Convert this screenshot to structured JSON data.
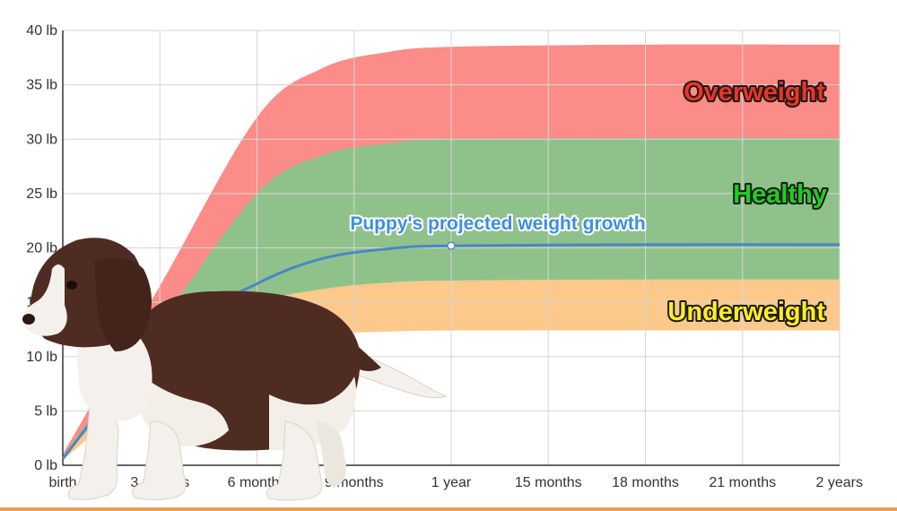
{
  "chart_data": {
    "type": "area",
    "x_ticks": [
      "birth",
      "3 months",
      "6 months",
      "9 months",
      "1 year",
      "15 months",
      "18 months",
      "21 months",
      "2 years"
    ],
    "x_range_months": [
      0,
      24
    ],
    "y_ticks": [
      "0 lb",
      "5 lb",
      "10 lb",
      "15 lb",
      "20 lb",
      "25 lb",
      "30 lb",
      "35 lb",
      "40 lb"
    ],
    "ylim": [
      0,
      40
    ],
    "unit": "lb",
    "grid": true,
    "bands": [
      {
        "name": "Overweight",
        "color": "#fb8c88",
        "label_color": "#ee3322",
        "points": [
          [
            0,
            1.0
          ],
          [
            3,
            16.5
          ],
          [
            6,
            32
          ],
          [
            8,
            36.5
          ],
          [
            10,
            38.0
          ],
          [
            12,
            38.5
          ],
          [
            18,
            38.7
          ],
          [
            24,
            38.7
          ]
        ]
      },
      {
        "name": "Healthy",
        "color": "#8fc28b",
        "label_color": "#22cc22",
        "points": [
          [
            0,
            0.8
          ],
          [
            3,
            13.0
          ],
          [
            6,
            25.0
          ],
          [
            8,
            28.5
          ],
          [
            10,
            29.6
          ],
          [
            12,
            30.0
          ],
          [
            18,
            30.1
          ],
          [
            24,
            30.1
          ]
        ]
      },
      {
        "name": "Underweight",
        "color": "#fcc98b",
        "label_color": "#ffee22",
        "points": [
          [
            0,
            0.7
          ],
          [
            3,
            10.0
          ],
          [
            6,
            14.8
          ],
          [
            8,
            16.2
          ],
          [
            10,
            16.8
          ],
          [
            12,
            17.0
          ],
          [
            18,
            17.1
          ],
          [
            24,
            17.1
          ]
        ]
      },
      {
        "name": "",
        "color": "#ffffff",
        "label_color": "",
        "points": [
          [
            0,
            0.5
          ],
          [
            3,
            7.5
          ],
          [
            6,
            11.0
          ],
          [
            8,
            12.0
          ],
          [
            10,
            12.3
          ],
          [
            12,
            12.4
          ],
          [
            18,
            12.4
          ],
          [
            24,
            12.4
          ]
        ]
      }
    ],
    "projection": {
      "name": "Puppy's projected weight growth",
      "color": "#4a86c8",
      "label_color": "#3d8fe0",
      "points": [
        [
          0,
          0.6
        ],
        [
          3,
          11.5
        ],
        [
          6,
          16.7
        ],
        [
          8,
          19.0
        ],
        [
          10,
          19.9
        ],
        [
          12,
          20.2
        ],
        [
          18,
          20.3
        ],
        [
          24,
          20.3
        ]
      ],
      "marker": [
        12,
        20.2
      ]
    }
  },
  "colors": {
    "bottom_rule": "#e8a050",
    "grid": "#d6d6d6",
    "axis": "#333333"
  },
  "illustration": "puppy-photo"
}
